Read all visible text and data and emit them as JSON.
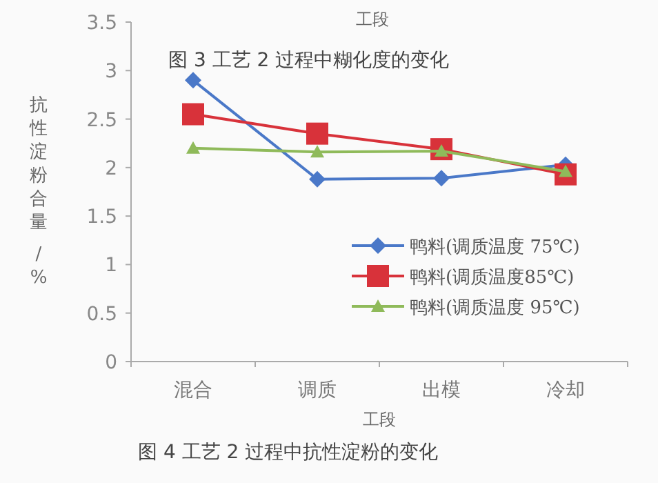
{
  "chart_data": {
    "type": "line",
    "title": "图 4 工艺 2 过程中抗性淀粉的变化",
    "xlabel": "工段",
    "ylabel": "抗性淀粉合量 /%",
    "annotations": [
      "工段",
      "图 3 工艺 2 过程中糊化度的变化"
    ],
    "categories": [
      "混合",
      "调质",
      "出模",
      "冷却"
    ],
    "series": [
      {
        "name": "鸭料(调质温度 75℃)",
        "color": "#4a78c8",
        "marker": "diamond",
        "values": [
          2.9,
          1.88,
          1.89,
          2.03
        ]
      },
      {
        "name": "鸭料(调质温度85℃)",
        "color": "#d8323a",
        "marker": "square",
        "values": [
          2.55,
          2.35,
          2.19,
          1.93
        ]
      },
      {
        "name": "鸭料(调质温度 95℃)",
        "color": "#8fba5a",
        "marker": "triangle",
        "values": [
          2.2,
          2.16,
          2.17,
          1.96
        ]
      }
    ],
    "ylim": [
      0,
      3.5
    ],
    "yticks": [
      0,
      0.5,
      1,
      1.5,
      2,
      2.5,
      3,
      3.5
    ],
    "legend": "right",
    "grid": false
  }
}
